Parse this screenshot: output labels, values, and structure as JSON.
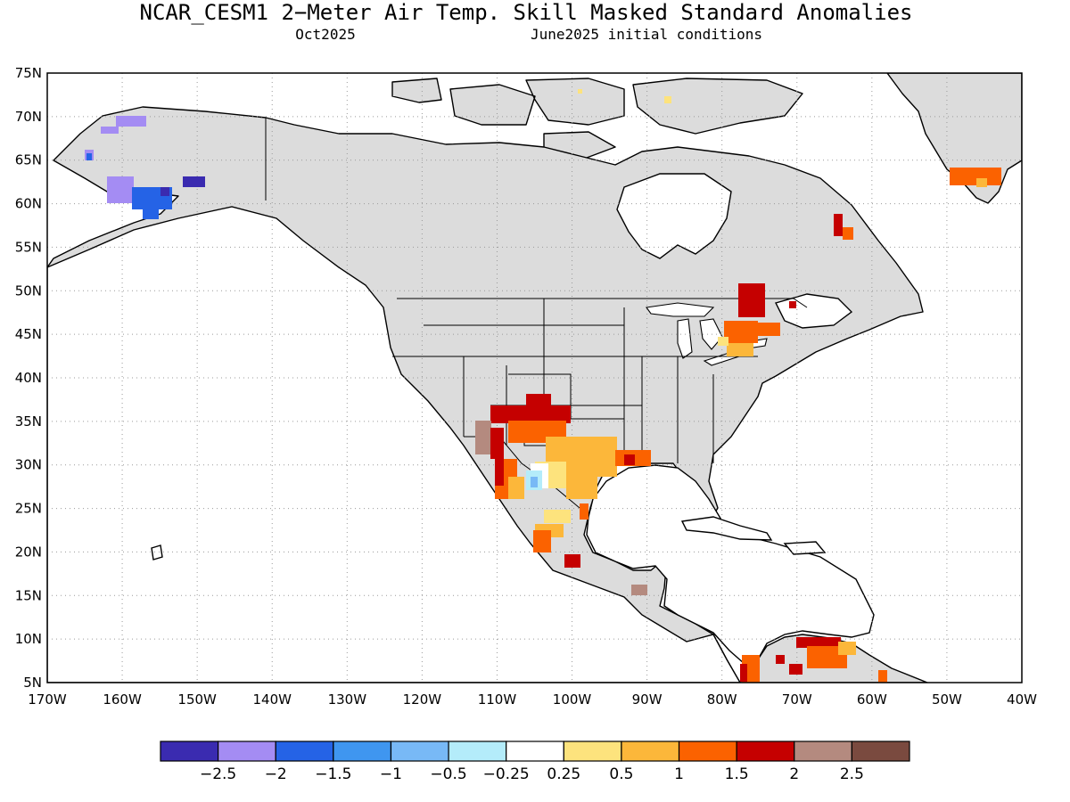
{
  "title": "NCAR_CESM1 2−Meter Air Temp. Skill Masked Standard Anomalies",
  "subtitle_left": "Oct2025",
  "subtitle_right": "June2025 initial conditions",
  "map": {
    "lon_range": [
      -170,
      -40
    ],
    "lat_range": [
      5,
      75
    ],
    "lat_labels": [
      "75N",
      "70N",
      "65N",
      "60N",
      "55N",
      "50N",
      "45N",
      "40N",
      "35N",
      "30N",
      "25N",
      "20N",
      "15N",
      "10N",
      "5N"
    ],
    "lon_labels": [
      "170W",
      "160W",
      "150W",
      "140W",
      "130W",
      "120W",
      "110W",
      "100W",
      "90W",
      "80W",
      "70W",
      "60W",
      "50W",
      "40W"
    ]
  },
  "colorbar": {
    "colors": [
      "#3a2bb0",
      "#a48cf3",
      "#2563e6",
      "#3f96f0",
      "#78b9f6",
      "#b4ecfa",
      "#ffffff",
      "#fde37d",
      "#fcb73a",
      "#fb6200",
      "#c50000",
      "#b48a7f",
      "#7a4a3f"
    ],
    "labels": [
      "−2.5",
      "−2",
      "−1.5",
      "−1",
      "−0.5",
      "−0.25",
      "0.25",
      "0.5",
      "1",
      "1.5",
      "2",
      "2.5"
    ]
  },
  "anomaly_colors": {
    "masked": "#dcdcdc",
    "neg_25": "#3a2bb0",
    "neg_2": "#a48cf3",
    "neg_15": "#2563e6",
    "neg_1": "#3f96f0",
    "neg_05": "#78b9f6",
    "neg_025": "#b4ecfa",
    "pos_025": "#fde37d",
    "pos_05": "#fcb73a",
    "pos_1": "#fb6200",
    "pos_15": "#c50000",
    "pos_2": "#b48a7f"
  }
}
